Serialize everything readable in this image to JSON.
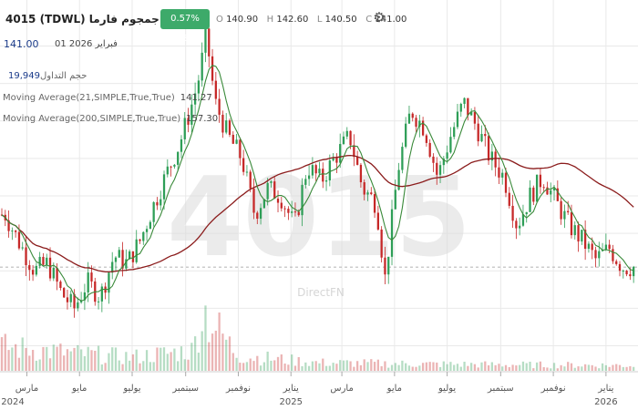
{
  "header": {
    "title": "4015 (TDWL) جمجوم فارما",
    "change_badge": "0.57%(0.80)",
    "ohlc": [
      {
        "k": "O",
        "v": "140.90"
      },
      {
        "k": "H",
        "v": "142.60"
      },
      {
        "k": "L",
        "v": "140.50"
      },
      {
        "k": "C",
        "v": "141.00"
      }
    ],
    "price": "141.00",
    "date": "01 فبراير 2026"
  },
  "indicators": [
    {
      "label": "حجم التداول",
      "value": "19,949"
    },
    {
      "label": "Moving Average(21,SIMPLE,True,True)",
      "value": "141.27"
    },
    {
      "label": "Moving Average(200,SIMPLE,True,True)",
      "value": "157.30"
    }
  ],
  "watermark": {
    "symbol": "4015",
    "brand": "DirectFN"
  },
  "colors": {
    "up": "#2e9e57",
    "down": "#c62828",
    "ma21": "#3a8a3a",
    "ma200": "#8b1c1c",
    "grid": "#e9e9e9",
    "badge": "#3daa6a"
  },
  "chart_data": {
    "type": "candlestick",
    "x_tick_labels": [
      "مارس",
      "مايو",
      "يوليو",
      "سبتمبر",
      "نوفمبر",
      "يناير",
      "مارس",
      "مايو",
      "يوليو",
      "سبتمبر",
      "نوفمبر",
      "يناير"
    ],
    "x_year_labels": [
      {
        "index": 0,
        "label": "2024"
      },
      {
        "index": 5,
        "label": "2025"
      },
      {
        "index": 11,
        "label": "2026"
      }
    ],
    "ylim": [
      115,
      205
    ],
    "last_close": 141.0,
    "price_path": [
      [
        "2024-02-05",
        155
      ],
      [
        "2024-02-20",
        148
      ],
      [
        "2024-03-10",
        140
      ],
      [
        "2024-03-25",
        142
      ],
      [
        "2024-04-10",
        134
      ],
      [
        "2024-04-25",
        130
      ],
      [
        "2024-05-10",
        137
      ],
      [
        "2024-05-25",
        133
      ],
      [
        "2024-06-10",
        144
      ],
      [
        "2024-06-25",
        142
      ],
      [
        "2024-07-10",
        148
      ],
      [
        "2024-07-25",
        157
      ],
      [
        "2024-08-10",
        166
      ],
      [
        "2024-08-25",
        174
      ],
      [
        "2024-09-05",
        182
      ],
      [
        "2024-09-15",
        190
      ],
      [
        "2024-09-25",
        203
      ],
      [
        "2024-10-05",
        185
      ],
      [
        "2024-10-20",
        176
      ],
      [
        "2024-11-05",
        170
      ],
      [
        "2024-11-20",
        155
      ],
      [
        "2024-12-05",
        162
      ],
      [
        "2024-12-20",
        160
      ],
      [
        "2025-01-05",
        152
      ],
      [
        "2025-01-20",
        168
      ],
      [
        "2025-02-05",
        164
      ],
      [
        "2025-02-20",
        170
      ],
      [
        "2025-03-10",
        176
      ],
      [
        "2025-03-25",
        162
      ],
      [
        "2025-04-10",
        158
      ],
      [
        "2025-04-20",
        138
      ],
      [
        "2025-05-05",
        167
      ],
      [
        "2025-05-20",
        183
      ],
      [
        "2025-06-05",
        178
      ],
      [
        "2025-06-20",
        165
      ],
      [
        "2025-07-05",
        176
      ],
      [
        "2025-07-20",
        185
      ],
      [
        "2025-08-05",
        178
      ],
      [
        "2025-08-20",
        170
      ],
      [
        "2025-09-05",
        165
      ],
      [
        "2025-09-20",
        152
      ],
      [
        "2025-10-05",
        160
      ],
      [
        "2025-10-20",
        165
      ],
      [
        "2025-11-05",
        158
      ],
      [
        "2025-11-20",
        152
      ],
      [
        "2025-12-05",
        148
      ],
      [
        "2025-12-20",
        143
      ],
      [
        "2026-01-05",
        146
      ],
      [
        "2026-01-20",
        141
      ],
      [
        "2026-02-01",
        141
      ]
    ],
    "volume_path": [
      [
        "2024-02-05",
        35
      ],
      [
        "2024-05-01",
        25
      ],
      [
        "2024-07-01",
        20
      ],
      [
        "2024-09-10",
        30
      ],
      [
        "2024-09-20",
        90
      ],
      [
        "2024-11-01",
        22
      ],
      [
        "2025-02-01",
        12
      ],
      [
        "2025-06-01",
        10
      ],
      [
        "2025-09-01",
        9
      ],
      [
        "2026-02-01",
        8
      ]
    ]
  }
}
